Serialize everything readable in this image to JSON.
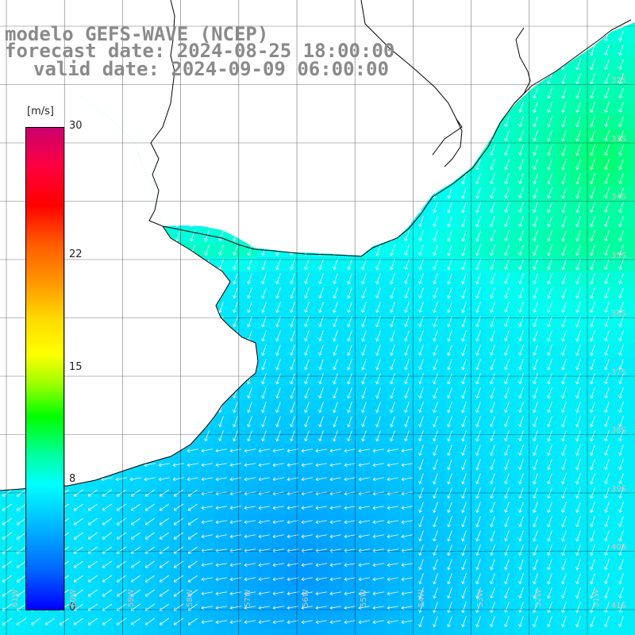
{
  "header": {
    "line1": "modelo GEFS-WAVE (NCEP)",
    "line2": "forecast date: 2024-08-25 18:00:00",
    "line3": "valid date: 2024-09-09 06:00:00"
  },
  "colorbar": {
    "units": "[m/s]",
    "ticks": [
      {
        "label": "30",
        "value": 30
      },
      {
        "label": "22",
        "value": 22
      },
      {
        "label": "15",
        "value": 15
      },
      {
        "label": "8",
        "value": 8
      },
      {
        "label": "0",
        "value": 0
      }
    ],
    "min": 0,
    "max": 30
  },
  "map": {
    "lat_labels": [
      "32S",
      "33S",
      "34S",
      "35S",
      "36S",
      "37S",
      "38S",
      "39S",
      "40S",
      "41S"
    ],
    "lon_labels": [
      "61W",
      "60W",
      "59W",
      "58W",
      "57W",
      "56W",
      "55W",
      "54W",
      "53W",
      "52W",
      "51W"
    ],
    "colors": {
      "land": "#ffffff",
      "coast": "#000000",
      "grid": "#000000",
      "arrow": "#ffffff"
    }
  }
}
